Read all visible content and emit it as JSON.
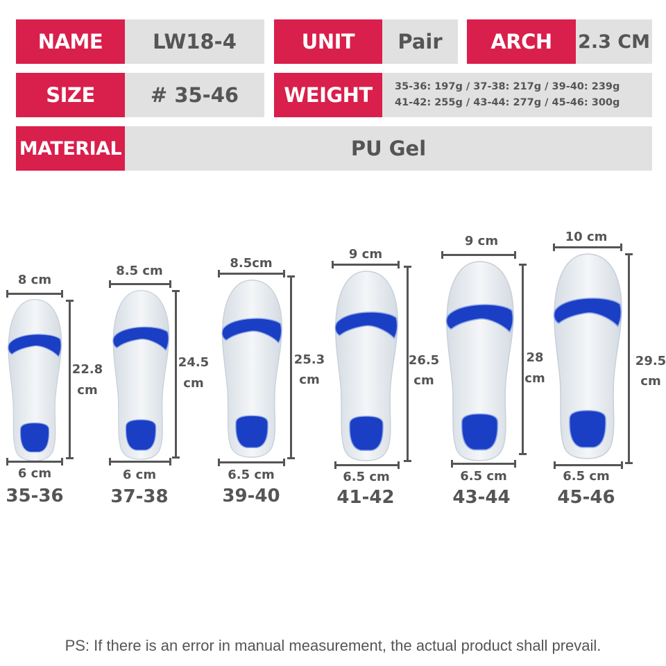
{
  "specs": {
    "name_label": "NAME",
    "name_value": "LW18-4",
    "unit_label": "UNIT",
    "unit_value": "Pair",
    "arch_label": "ARCH",
    "arch_value": "2.3 CM",
    "size_label": "SIZE",
    "size_value": "# 35-46",
    "weight_label": "WEIGHT",
    "weight_line1": "35-36: 197g / 37-38: 217g / 39-40: 239g",
    "weight_line2": "41-42: 255g / 43-44: 277g / 45-46: 300g",
    "material_label": "MATERIAL",
    "material_value": "PU Gel"
  },
  "colors": {
    "accent": "#d91f4b",
    "cell_bg": "#e1e1e1",
    "gel_blue": "#1a3fc4"
  },
  "insoles": [
    {
      "size": "35-36",
      "top_width": "8 cm",
      "length": "22.8",
      "length_unit": "cm",
      "heel_width": "6 cm"
    },
    {
      "size": "37-38",
      "top_width": "8.5 cm",
      "length": "24.5",
      "length_unit": "cm",
      "heel_width": "6 cm"
    },
    {
      "size": "39-40",
      "top_width": "8.5cm",
      "length": "25.3",
      "length_unit": "cm",
      "heel_width": "6.5 cm"
    },
    {
      "size": "41-42",
      "top_width": "9 cm",
      "length": "26.5",
      "length_unit": "cm",
      "heel_width": "6.5 cm"
    },
    {
      "size": "43-44",
      "top_width": "9 cm",
      "length": "28",
      "length_unit": "cm",
      "heel_width": "6.5 cm"
    },
    {
      "size": "45-46",
      "top_width": "10 cm",
      "length": "29.5",
      "length_unit": "cm",
      "heel_width": "6.5 cm"
    }
  ],
  "footer": "PS: If there is an error in manual measurement, the actual product shall prevail."
}
